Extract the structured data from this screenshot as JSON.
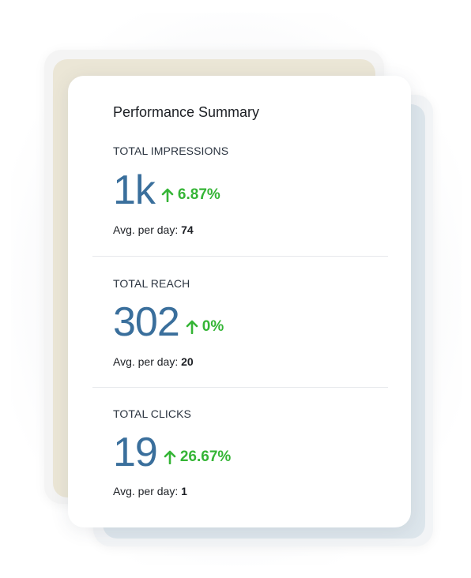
{
  "card": {
    "title": "Performance Summary"
  },
  "metrics": [
    {
      "label": "TOTAL IMPRESSIONS",
      "value": "1k",
      "change": "6.87%",
      "avg_label": "Avg. per day:",
      "avg_value": "74"
    },
    {
      "label": "TOTAL REACH",
      "value": "302",
      "change": "0%",
      "avg_label": "Avg. per day:",
      "avg_value": "20"
    },
    {
      "label": "TOTAL CLICKS",
      "value": "19",
      "change": "26.67%",
      "avg_label": "Avg. per day:",
      "avg_value": "1"
    }
  ],
  "colors": {
    "value": "#3a6f9c",
    "positive_change": "#35b536",
    "back_left_card": "#ebe6d6",
    "back_right_card": "#dde6ec"
  },
  "icons": {
    "change": "arrow-up-icon"
  }
}
